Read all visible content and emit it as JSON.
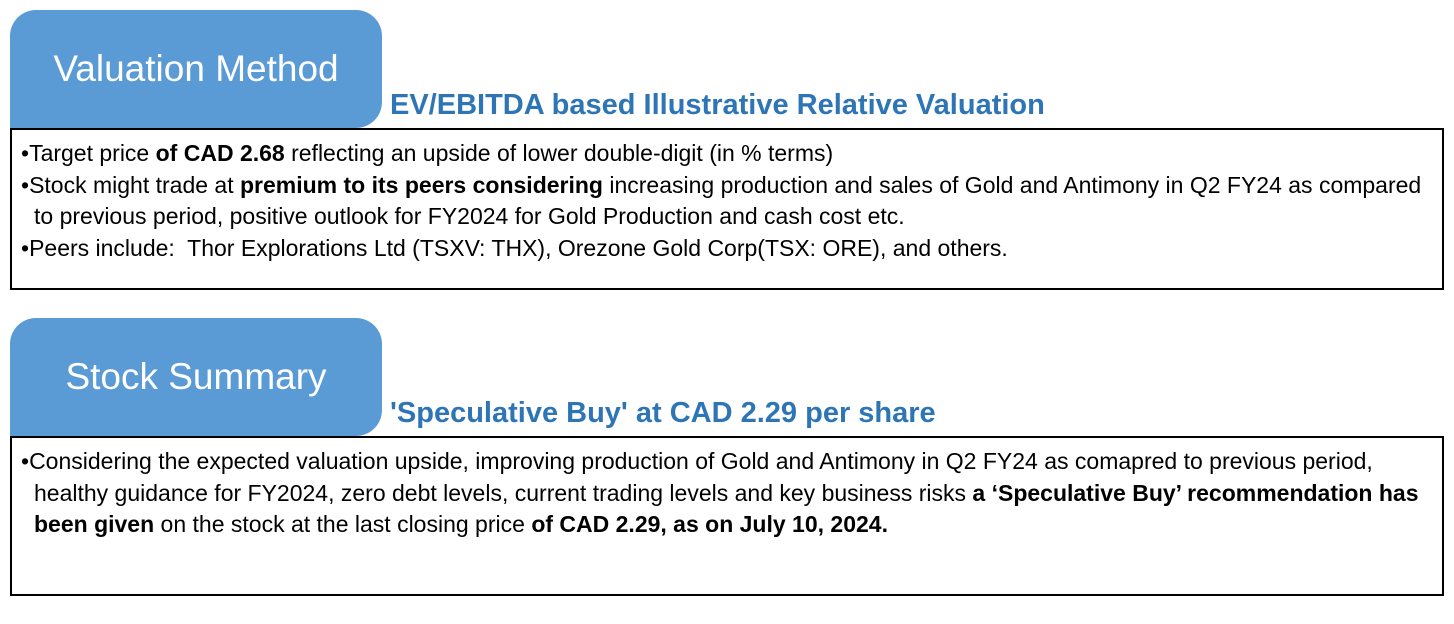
{
  "colors": {
    "tab-bg": "#5b9bd5",
    "subtitle": "#2e75b6",
    "text": "#000000",
    "border": "#000000"
  },
  "sections": {
    "valuation": {
      "tab_label": "Valuation Method",
      "subtitle": "EV/EBITDA based Illustrative Relative Valuation",
      "bullets": [
        [
          {
            "text": "Target price ",
            "bold": false
          },
          {
            "text": "of CAD 2.68",
            "bold": true
          },
          {
            "text": " reflecting an upside of lower double-digit (in % terms)",
            "bold": false
          }
        ],
        [
          {
            "text": "Stock might trade at ",
            "bold": false
          },
          {
            "text": "premium to its peers considering",
            "bold": true
          },
          {
            "text": " increasing production and sales of Gold and Antimony in Q2 FY24 as compared to previous period, positive outlook for FY2024 for Gold Production and cash cost etc.",
            "bold": false
          }
        ],
        [
          {
            "text": "Peers include:  Thor Explorations Ltd (TSXV: THX), Orezone Gold Corp(TSX: ORE), and others.",
            "bold": false
          }
        ]
      ]
    },
    "summary": {
      "tab_label": "Stock Summary",
      "subtitle": "'Speculative Buy' at CAD 2.29 per share",
      "bullets": [
        [
          {
            "text": "Considering the expected valuation upside, improving production of Gold and Antimony in Q2 FY24 as comapred to previous period, healthy guidance for FY2024, zero debt levels, current trading levels and key business risks ",
            "bold": false
          },
          {
            "text": "a ‘Speculative Buy’ recommendation has been given",
            "bold": true
          },
          {
            "text": " on the stock at the last closing price ",
            "bold": false
          },
          {
            "text": "of CAD 2.29, as on July 10, 2024.",
            "bold": true
          }
        ]
      ]
    }
  }
}
